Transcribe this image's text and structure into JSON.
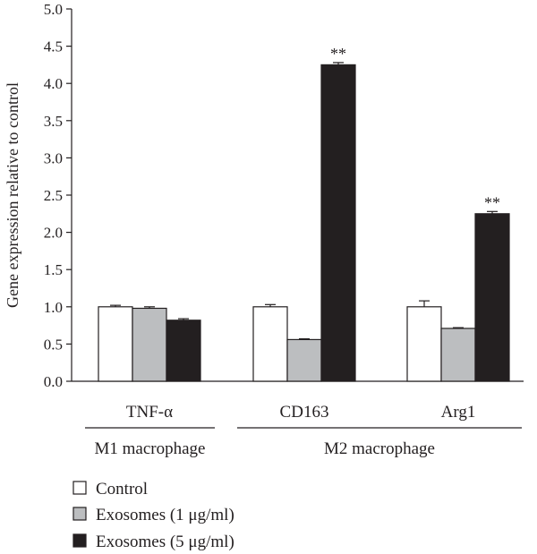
{
  "chart_data": {
    "type": "bar",
    "ylabel": "Gene expression relative to control",
    "ylim": [
      0,
      5
    ],
    "yticks": [
      "0.0",
      "0.5",
      "1.0",
      "1.5",
      "2.0",
      "2.5",
      "3.0",
      "3.5",
      "4.0",
      "4.5",
      "5.0"
    ],
    "categories": [
      "TNF-α",
      "CD163",
      "Arg1"
    ],
    "groups": [
      {
        "label": "M1 macrophage",
        "categories": [
          "TNF-α"
        ]
      },
      {
        "label": "M2 macrophage",
        "categories": [
          "CD163",
          "Arg1"
        ]
      }
    ],
    "series": [
      {
        "name": "Control",
        "color": "#ffffff",
        "values": [
          1.0,
          1.0,
          1.0
        ],
        "errors": [
          0.02,
          0.03,
          0.08
        ]
      },
      {
        "name": "Exosomes (1 μg/ml)",
        "color": "#bcbec0",
        "values": [
          0.98,
          0.56,
          0.71
        ],
        "errors": [
          0.02,
          0.01,
          0.01
        ]
      },
      {
        "name": "Exosomes (5 μg/ml)",
        "color": "#231f20",
        "values": [
          0.82,
          4.25,
          2.25
        ],
        "errors": [
          0.02,
          0.03,
          0.03
        ]
      }
    ],
    "annotations": [
      "",
      "**",
      "**"
    ],
    "legend_position": "bottom-left"
  }
}
